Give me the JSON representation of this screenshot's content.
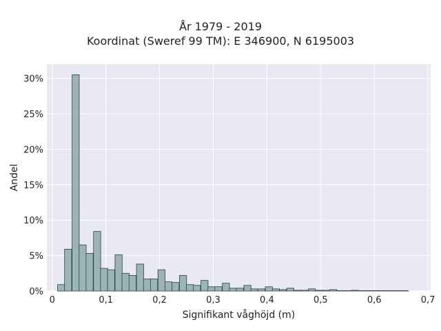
{
  "chart_data": {
    "type": "bar",
    "title": "År 1979 - 2019",
    "subtitle": "Koordinat (Sweref 99 TM): E 346900, N 6195003",
    "xlabel": "Signifikant våghöjd (m)",
    "ylabel": "Andel",
    "xlim": [
      -0.01,
      0.705
    ],
    "ylim": [
      0,
      0.32
    ],
    "grid": true,
    "x_ticks": [
      0,
      0.1,
      0.2,
      0.3,
      0.4,
      0.5,
      0.6,
      0.7
    ],
    "x_tick_labels": [
      "0",
      "0,1",
      "0,2",
      "0,3",
      "0,4",
      "0,5",
      "0,6",
      "0,7"
    ],
    "y_ticks": [
      0,
      0.05,
      0.1,
      0.15,
      0.2,
      0.25,
      0.3
    ],
    "y_tick_labels": [
      "0%",
      "5%",
      "10%",
      "15%",
      "20%",
      "25%",
      "30%"
    ],
    "bin_width": 0.0133,
    "bin_starts": [
      0.01,
      0.023,
      0.037,
      0.05,
      0.063,
      0.077,
      0.09,
      0.103,
      0.117,
      0.13,
      0.143,
      0.157,
      0.17,
      0.183,
      0.197,
      0.21,
      0.223,
      0.237,
      0.25,
      0.263,
      0.277,
      0.29,
      0.303,
      0.317,
      0.33,
      0.343,
      0.357,
      0.37,
      0.383,
      0.397,
      0.41,
      0.423,
      0.437,
      0.45,
      0.463,
      0.477,
      0.49,
      0.503,
      0.517,
      0.53,
      0.543,
      0.557,
      0.57,
      0.583,
      0.597,
      0.61,
      0.623,
      0.637,
      0.65
    ],
    "values": [
      0.009,
      0.059,
      0.305,
      0.065,
      0.053,
      0.084,
      0.032,
      0.03,
      0.051,
      0.025,
      0.022,
      0.038,
      0.017,
      0.017,
      0.03,
      0.013,
      0.012,
      0.022,
      0.009,
      0.008,
      0.015,
      0.006,
      0.006,
      0.011,
      0.004,
      0.004,
      0.008,
      0.003,
      0.003,
      0.006,
      0.003,
      0.002,
      0.004,
      0.001,
      0.001,
      0.003,
      0.001,
      0.001,
      0.002,
      0.0005,
      0.0005,
      0.001,
      0.0005,
      0.0005,
      0.0005,
      0.0005,
      0.0005,
      0.0005,
      0.0005
    ],
    "colors": {
      "bar_fill": "#9bb4b4",
      "bar_stroke": "#2f3f3f",
      "plot_bg": "#e9e9f1",
      "grid": "#ffffff"
    }
  }
}
